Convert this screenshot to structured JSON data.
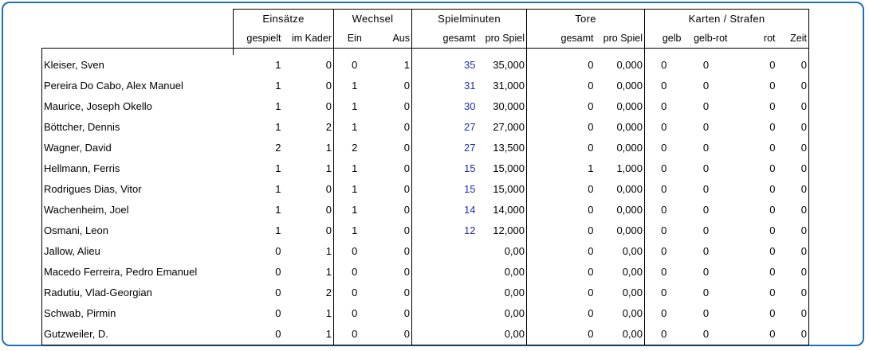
{
  "headers": {
    "groups": [
      "Einsätze",
      "Wechsel",
      "Spielminuten",
      "Tore",
      "Karten / Strafen"
    ],
    "columns": [
      "gespielt",
      "im Kader",
      "Ein",
      "Aus",
      "gesamt",
      "pro Spiel",
      "gesamt",
      "pro Spiel",
      "gelb",
      "gelb-rot",
      "rot",
      "Zeit"
    ]
  },
  "rows": [
    {
      "name": "Kleiser, Sven",
      "gespielt": "1",
      "kader": "0",
      "ein": "0",
      "aus": "1",
      "min": "35",
      "min_pro": "35,000",
      "tore": "0",
      "tore_pro": "0,000",
      "gelb": "0",
      "gelbrot": "0",
      "rot": "0",
      "zeit": "0"
    },
    {
      "name": "Pereira Do Cabo, Alex Manuel",
      "gespielt": "1",
      "kader": "0",
      "ein": "1",
      "aus": "0",
      "min": "31",
      "min_pro": "31,000",
      "tore": "0",
      "tore_pro": "0,000",
      "gelb": "0",
      "gelbrot": "0",
      "rot": "0",
      "zeit": "0"
    },
    {
      "name": "Maurice, Joseph Okello",
      "gespielt": "1",
      "kader": "0",
      "ein": "1",
      "aus": "0",
      "min": "30",
      "min_pro": "30,000",
      "tore": "0",
      "tore_pro": "0,000",
      "gelb": "0",
      "gelbrot": "0",
      "rot": "0",
      "zeit": "0"
    },
    {
      "name": "Böttcher, Dennis",
      "gespielt": "1",
      "kader": "2",
      "ein": "1",
      "aus": "0",
      "min": "27",
      "min_pro": "27,000",
      "tore": "0",
      "tore_pro": "0,000",
      "gelb": "0",
      "gelbrot": "0",
      "rot": "0",
      "zeit": "0"
    },
    {
      "name": "Wagner, David",
      "gespielt": "2",
      "kader": "1",
      "ein": "2",
      "aus": "0",
      "min": "27",
      "min_pro": "13,500",
      "tore": "0",
      "tore_pro": "0,000",
      "gelb": "0",
      "gelbrot": "0",
      "rot": "0",
      "zeit": "0"
    },
    {
      "name": "Hellmann, Ferris",
      "gespielt": "1",
      "kader": "1",
      "ein": "1",
      "aus": "0",
      "min": "15",
      "min_pro": "15,000",
      "tore": "1",
      "tore_pro": "1,000",
      "gelb": "0",
      "gelbrot": "0",
      "rot": "0",
      "zeit": "0"
    },
    {
      "name": "Rodrigues Dias, Vitor",
      "gespielt": "1",
      "kader": "0",
      "ein": "1",
      "aus": "0",
      "min": "15",
      "min_pro": "15,000",
      "tore": "0",
      "tore_pro": "0,000",
      "gelb": "0",
      "gelbrot": "0",
      "rot": "0",
      "zeit": "0"
    },
    {
      "name": "Wachenheim, Joel",
      "gespielt": "1",
      "kader": "0",
      "ein": "1",
      "aus": "0",
      "min": "14",
      "min_pro": "14,000",
      "tore": "0",
      "tore_pro": "0,000",
      "gelb": "0",
      "gelbrot": "0",
      "rot": "0",
      "zeit": "0"
    },
    {
      "name": "Osmani, Leon",
      "gespielt": "1",
      "kader": "0",
      "ein": "1",
      "aus": "0",
      "min": "12",
      "min_pro": "12,000",
      "tore": "0",
      "tore_pro": "0,000",
      "gelb": "0",
      "gelbrot": "0",
      "rot": "0",
      "zeit": "0"
    },
    {
      "name": "Jallow, Alieu",
      "gespielt": "0",
      "kader": "1",
      "ein": "0",
      "aus": "0",
      "min": "",
      "min_pro": "0,00",
      "tore": "0",
      "tore_pro": "0,00",
      "gelb": "0",
      "gelbrot": "0",
      "rot": "0",
      "zeit": "0"
    },
    {
      "name": "Macedo Ferreira, Pedro Emanuel",
      "gespielt": "0",
      "kader": "1",
      "ein": "0",
      "aus": "0",
      "min": "",
      "min_pro": "0,00",
      "tore": "0",
      "tore_pro": "0,00",
      "gelb": "0",
      "gelbrot": "0",
      "rot": "0",
      "zeit": "0"
    },
    {
      "name": "Radutiu, Vlad-Georgian",
      "gespielt": "0",
      "kader": "2",
      "ein": "0",
      "aus": "0",
      "min": "",
      "min_pro": "0,00",
      "tore": "0",
      "tore_pro": "0,00",
      "gelb": "0",
      "gelbrot": "0",
      "rot": "0",
      "zeit": "0"
    },
    {
      "name": "Schwab, Pirmin",
      "gespielt": "0",
      "kader": "1",
      "ein": "0",
      "aus": "0",
      "min": "",
      "min_pro": "0,00",
      "tore": "0",
      "tore_pro": "0,00",
      "gelb": "0",
      "gelbrot": "0",
      "rot": "0",
      "zeit": "0"
    },
    {
      "name": "Gutzweiler, D.",
      "gespielt": "0",
      "kader": "1",
      "ein": "0",
      "aus": "0",
      "min": "",
      "min_pro": "0,00",
      "tore": "0",
      "tore_pro": "0,00",
      "gelb": "0",
      "gelbrot": "0",
      "rot": "0",
      "zeit": "0"
    }
  ],
  "colors": {
    "frame": "#1c6fc1",
    "minutes_text": "#1f2db0"
  }
}
